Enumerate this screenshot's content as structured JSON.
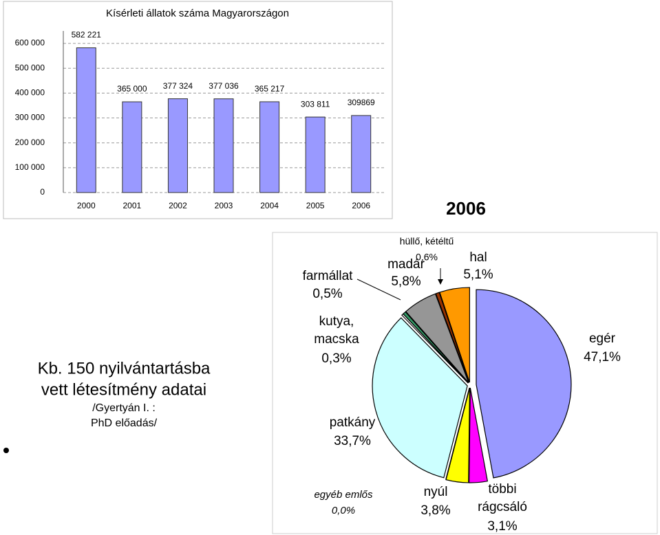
{
  "chart_data": [
    {
      "type": "bar",
      "title": "Kísérleti állatok száma Magyarországon",
      "categories": [
        "2000",
        "2001",
        "2002",
        "2003",
        "2004",
        "2005",
        "2006"
      ],
      "values": [
        582221,
        365000,
        377324,
        377036,
        365217,
        303811,
        309869
      ],
      "value_labels": [
        "582 221",
        "365 000",
        "377 324",
        "377 036",
        "365 217",
        "303 811",
        "309869"
      ],
      "color": "#9999ff",
      "ylim": [
        0,
        650000
      ],
      "yticks": [
        0,
        {
          "value": 100000,
          "label": "100 000"
        },
        {
          "value": 200000,
          "label": "200 000"
        },
        {
          "value": 300000,
          "label": "300 000"
        },
        {
          "value": 400000,
          "label": "400 000"
        },
        {
          "value": 500000,
          "label": "500 000"
        },
        {
          "value": 600000,
          "label": "600 000"
        }
      ],
      "grid": true
    },
    {
      "type": "pie",
      "title": "2006",
      "categories": [
        "egér",
        "többi rágcsáló",
        "nyúl",
        "egyéb emlős",
        "patkány",
        "kutya, macska",
        "farmállat",
        "madár",
        "hüllő, kétéltű",
        "hal"
      ],
      "values": [
        47.1,
        3.1,
        3.8,
        0.0,
        33.7,
        0.3,
        0.5,
        5.8,
        0.6,
        5.1
      ],
      "value_labels": [
        "47,1%",
        "3,1%",
        "3,8%",
        "0,0%",
        "33,7%",
        "0,3%",
        "0,5%",
        "5,8%",
        "0,6%",
        "5,1%"
      ],
      "colors": [
        "#9999ff",
        "#ff00ff",
        "#ffff00",
        "#c0c0c0",
        "#ccffff",
        "#ffffff",
        "#339966",
        "#969696",
        "#993300",
        "#ff9900"
      ]
    }
  ],
  "notes": {
    "lines": [
      "Kb. 150 nyilvántartásba",
      "vett létesítmény adatai"
    ],
    "source": [
      "/Gyertyán I. :",
      "PhD előadás/"
    ]
  }
}
